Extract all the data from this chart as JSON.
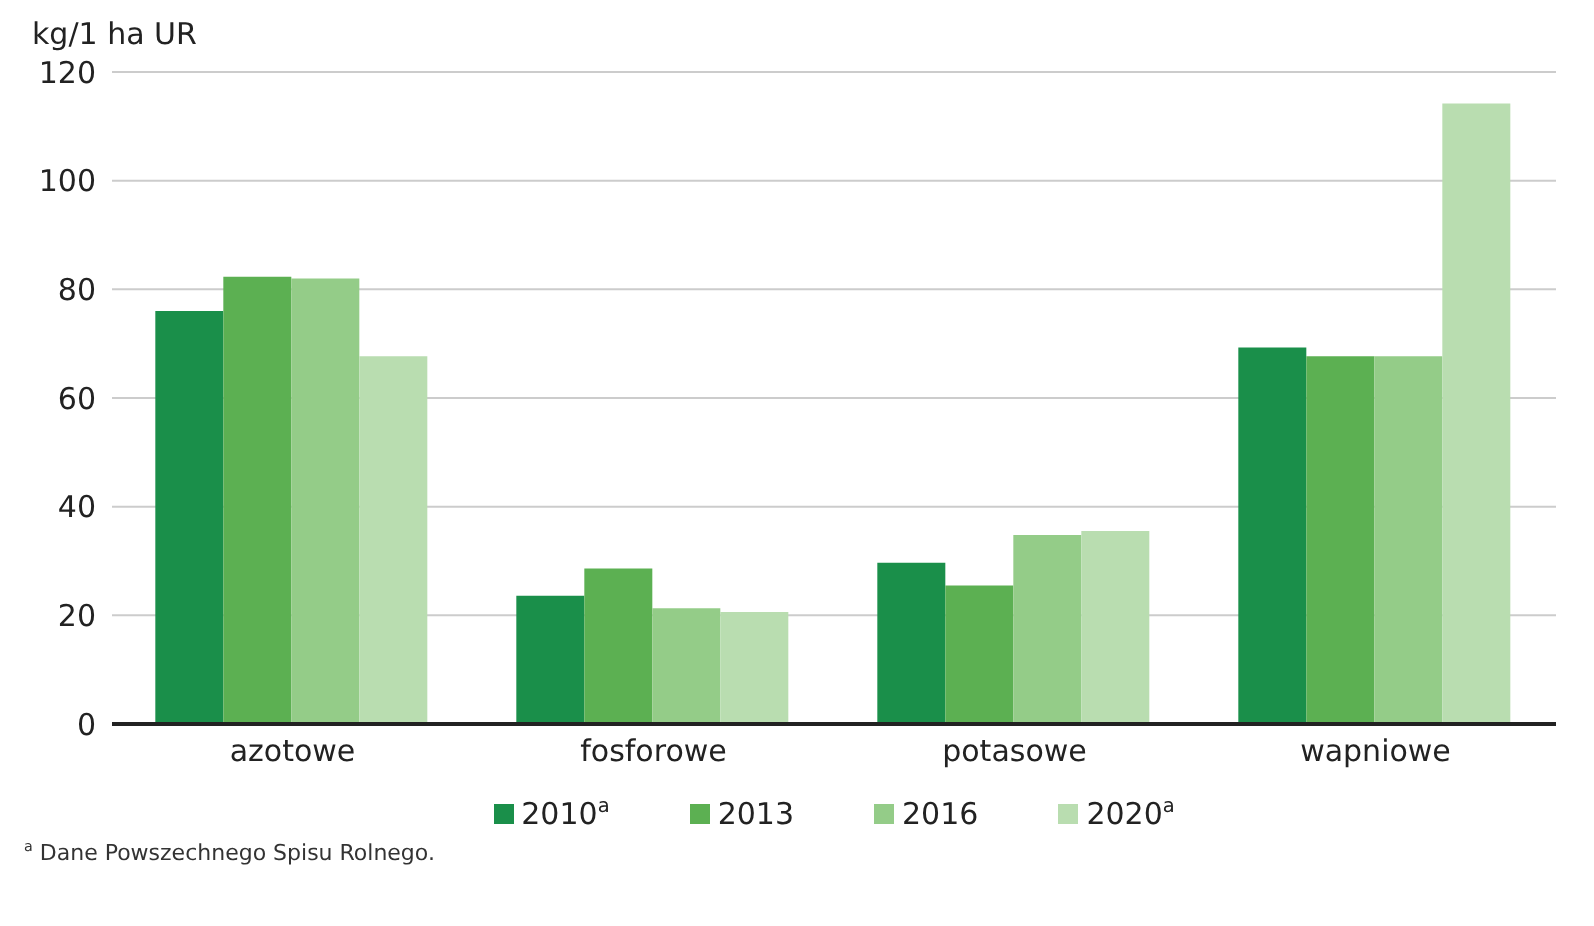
{
  "chart_data": {
    "type": "bar",
    "ylabel": "kg/1 ha UR",
    "categories": [
      "azotowe",
      "fosforowe",
      "potasowe",
      "wapniowe"
    ],
    "series": [
      {
        "name": "2010$^{a}$",
        "color": "#1a8f4a",
        "values": [
          76,
          23.6,
          29.7,
          69.3
        ]
      },
      {
        "name": "2013",
        "color": "#5cb052",
        "values": [
          82.3,
          28.6,
          25.5,
          67.7
        ]
      },
      {
        "name": "2016",
        "color": "#94cc88",
        "values": [
          82,
          21.3,
          34.8,
          67.7
        ]
      },
      {
        "name": "2020$^{a}$",
        "color": "#b9ddb0",
        "values": [
          67.7,
          20.6,
          35.5,
          114.2
        ]
      }
    ],
    "ylim": [
      0,
      120
    ],
    "yticks": [
      0,
      20,
      40,
      60,
      80,
      100,
      120
    ],
    "grid": "y",
    "legend": "bottom",
    "annotations": [
      "$^{a}$ Dane Powszechnego Spisu Rolnego."
    ]
  }
}
